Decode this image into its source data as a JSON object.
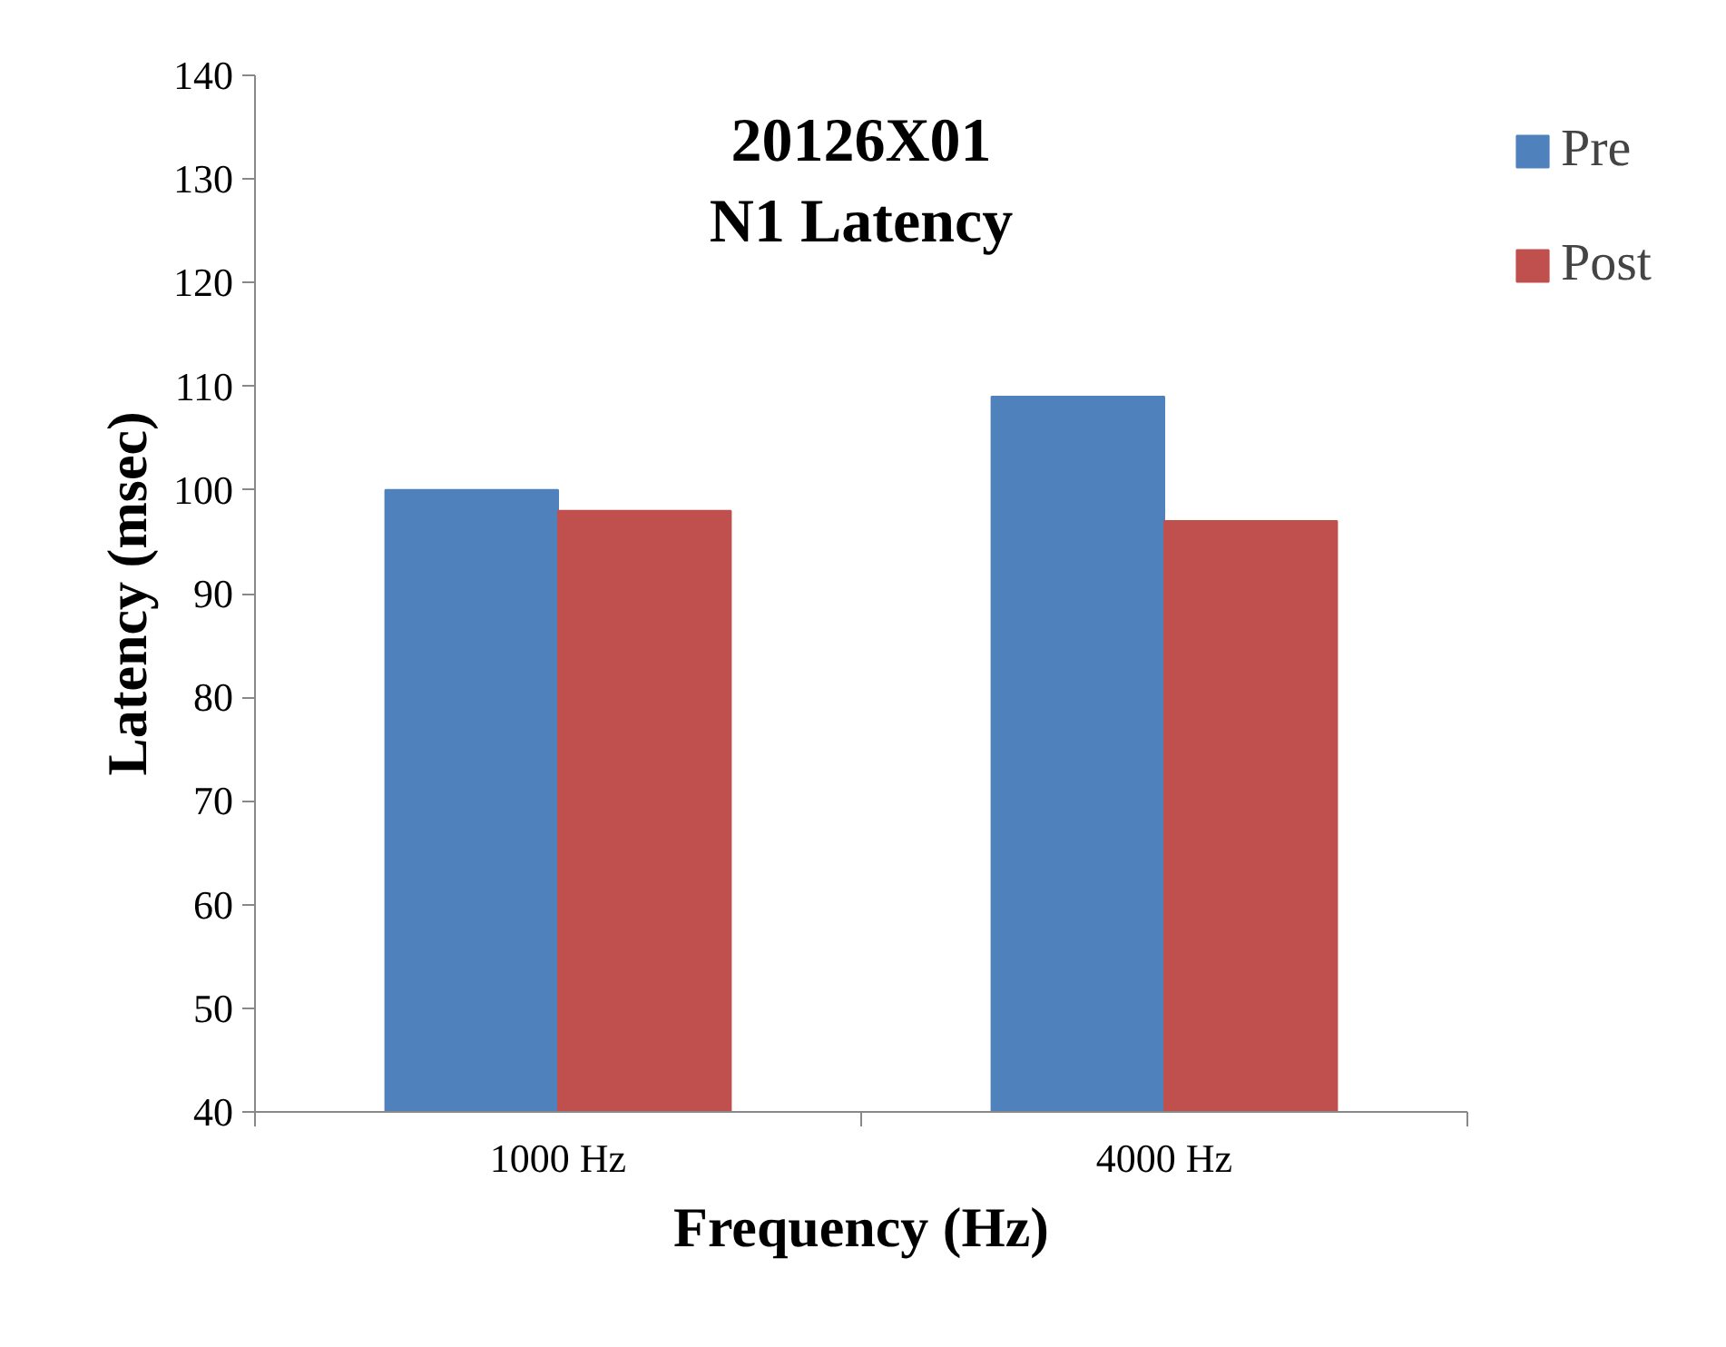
{
  "chart_data": {
    "type": "bar",
    "title": "20126X01\nN1 Latency",
    "xlabel": "Frequency (Hz)",
    "ylabel": "Latency (msec)",
    "categories": [
      "1000 Hz",
      "4000 Hz"
    ],
    "series": [
      {
        "name": "Pre",
        "color": "#4f81bd",
        "values": [
          100,
          109
        ]
      },
      {
        "name": "Post",
        "color": "#c0504d",
        "values": [
          98,
          97
        ]
      }
    ],
    "ylim": [
      40,
      140
    ],
    "yticks": [
      40,
      50,
      60,
      70,
      80,
      90,
      100,
      110,
      120,
      130,
      140
    ],
    "grid": false,
    "legend": "top right"
  }
}
